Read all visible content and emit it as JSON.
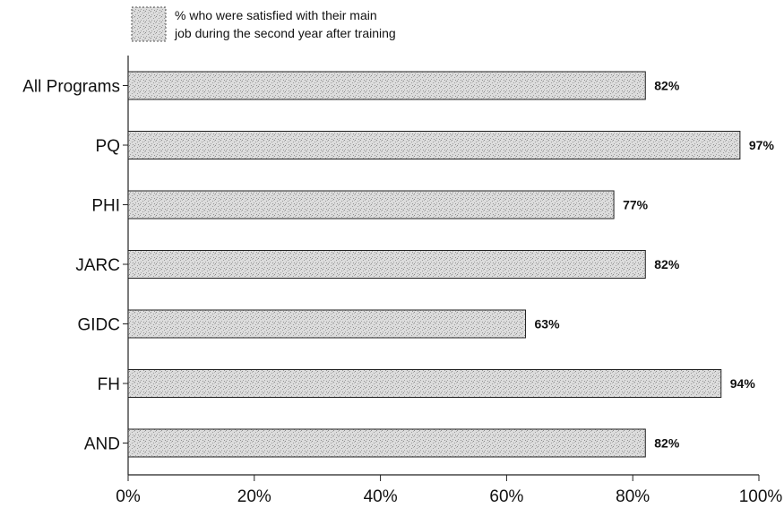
{
  "chart_data": {
    "type": "bar",
    "orientation": "horizontal",
    "categories": [
      "All Programs",
      "PQ",
      "PHI",
      "JARC",
      "GIDC",
      "FH",
      "AND"
    ],
    "series": [
      {
        "name": "% who were satisfied with their main job during the second year after training",
        "values": [
          82,
          97,
          77,
          82,
          63,
          94,
          82
        ],
        "value_labels": [
          "82%",
          "97%",
          "77%",
          "82%",
          "63%",
          "94%",
          "82%"
        ]
      }
    ],
    "legend": {
      "line1": "% who were satisfied with their main",
      "line2": "job during the second year after training",
      "placement": "top-left"
    },
    "xlim": [
      0,
      100
    ],
    "x_ticks": [
      0,
      20,
      40,
      60,
      80,
      100
    ],
    "x_tick_labels": [
      "0%",
      "20%",
      "40%",
      "60%",
      "80%",
      "100%"
    ],
    "grid": false,
    "bar_fill": "#d6d6d6",
    "bar_edge": "#222222"
  }
}
